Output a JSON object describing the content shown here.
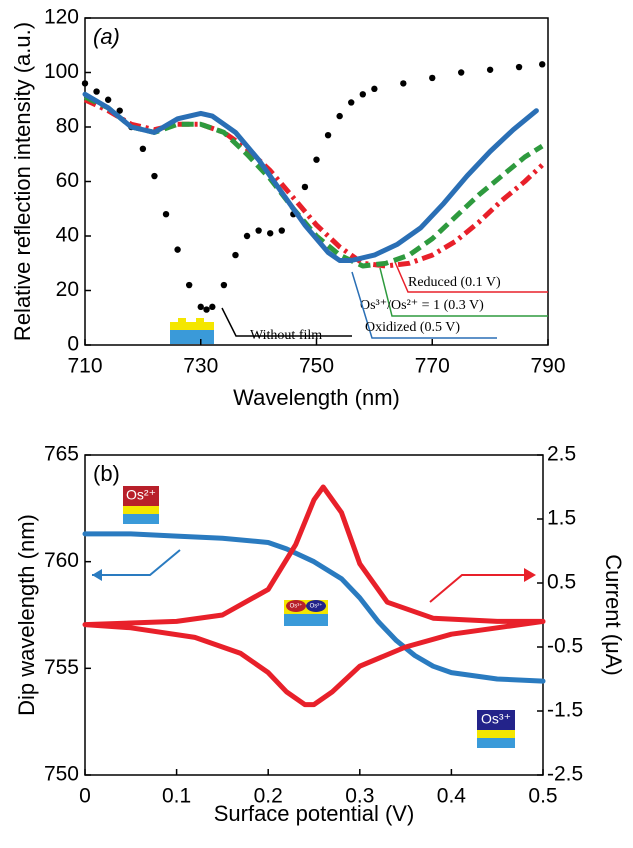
{
  "chart_data": [
    {
      "type": "line",
      "panel_label": "(a)",
      "xlabel": "Wavelength (nm)",
      "ylabel": "Relative reflection intensity (a.u.)",
      "xlim": [
        710,
        790
      ],
      "ylim": [
        0,
        120
      ],
      "xticks": [
        710,
        730,
        750,
        770,
        790
      ],
      "yticks": [
        0,
        20,
        40,
        60,
        80,
        100,
        120
      ],
      "series": [
        {
          "name": "Without film",
          "color": "#000000",
          "linestyle": "dots",
          "x": [
            710,
            712,
            714,
            716,
            718,
            720,
            722,
            724,
            726,
            728,
            730,
            731,
            732,
            734,
            736,
            738,
            740,
            742,
            744,
            746,
            748,
            750,
            752,
            754,
            756,
            758,
            760,
            765,
            770,
            775,
            780,
            785,
            789
          ],
          "values": [
            96,
            93,
            90,
            86,
            80,
            72,
            62,
            48,
            35,
            22,
            14,
            13,
            14,
            22,
            33,
            40,
            42,
            41,
            42,
            48,
            58,
            68,
            77,
            84,
            89,
            92,
            94,
            96,
            98,
            100,
            101,
            102,
            103
          ]
        },
        {
          "name": "Reduced (0.1 V)",
          "color": "#e8202a",
          "linestyle": "dashdot",
          "x": [
            710,
            714,
            718,
            722,
            726,
            730,
            734,
            738,
            742,
            746,
            750,
            754,
            758,
            762,
            766,
            770,
            774,
            778,
            782,
            786,
            789
          ],
          "values": [
            90,
            86,
            81,
            79,
            81,
            81,
            78,
            72,
            64,
            54,
            44,
            36,
            30,
            29,
            30,
            33,
            38,
            45,
            53,
            60,
            66
          ]
        },
        {
          "name": "Os³⁺/Os²⁺ = 1 (0.3 V)",
          "color": "#2e9a3e",
          "linestyle": "dashed",
          "x": [
            710,
            714,
            718,
            722,
            726,
            730,
            734,
            738,
            742,
            746,
            750,
            754,
            758,
            762,
            766,
            770,
            774,
            778,
            782,
            786,
            789
          ],
          "values": [
            91,
            87,
            80,
            78,
            81,
            81,
            78,
            70,
            61,
            50,
            40,
            33,
            29,
            30,
            33,
            39,
            47,
            55,
            62,
            69,
            73
          ]
        },
        {
          "name": "Oxidized (0.5 V)",
          "color": "#2a6fb5",
          "linestyle": "solid",
          "x": [
            710,
            714,
            718,
            722,
            726,
            730,
            732,
            736,
            740,
            744,
            748,
            752,
            754,
            756,
            760,
            764,
            768,
            772,
            776,
            780,
            784,
            788
          ],
          "values": [
            92,
            87,
            80,
            78,
            83,
            85,
            84,
            78,
            68,
            56,
            44,
            34,
            31,
            31,
            33,
            37,
            43,
            52,
            62,
            71,
            79,
            86
          ]
        }
      ]
    },
    {
      "type": "line",
      "panel_label": "(b)",
      "xlabel": "Surface potential (V)",
      "ylabel": "Dip wavelength (nm)",
      "y2label": "Current (μA)",
      "xlim": [
        0,
        0.5
      ],
      "ylim": [
        750,
        765
      ],
      "y2lim": [
        -2.5,
        2.5
      ],
      "xticks": [
        0,
        0.1,
        0.2,
        0.3,
        0.4,
        0.5
      ],
      "yticks": [
        750,
        755,
        760,
        765
      ],
      "y2ticks": [
        -2.5,
        -1.5,
        -0.5,
        0.5,
        1.5,
        2.5
      ],
      "annotations": [
        "Os²⁺",
        "Os³⁺",
        "Os³⁺",
        "Os²⁺"
      ],
      "series": [
        {
          "color": "#2a7bc0",
          "linestyle": "solid",
          "x": [
            0,
            0.05,
            0.1,
            0.15,
            0.2,
            0.22,
            0.25,
            0.28,
            0.3,
            0.32,
            0.34,
            0.36,
            0.38,
            0.4,
            0.45,
            0.5
          ],
          "values": [
            761.3,
            761.3,
            761.2,
            761.1,
            760.9,
            760.6,
            760,
            759.2,
            758.3,
            757.2,
            756.3,
            755.6,
            755.1,
            754.8,
            754.5,
            754.4
          ]
        },
        {
          "color": "#e8202a",
          "linestyle": "solid",
          "axis": "y2",
          "x": [
            0,
            0.1,
            0.15,
            0.2,
            0.23,
            0.25,
            0.26,
            0.28,
            0.3,
            0.33,
            0.38,
            0.45,
            0.5,
            0.45,
            0.4,
            0.35,
            0.3,
            0.27,
            0.25,
            0.24,
            0.22,
            0.2,
            0.17,
            0.12,
            0.05,
            0
          ],
          "values": [
            -0.15,
            -0.1,
            0.0,
            0.4,
            1.1,
            1.8,
            2.0,
            1.6,
            0.8,
            0.2,
            -0.05,
            -0.1,
            -0.1,
            -0.2,
            -0.3,
            -0.5,
            -0.8,
            -1.2,
            -1.4,
            -1.4,
            -1.2,
            -0.9,
            -0.6,
            -0.35,
            -0.2,
            -0.15
          ]
        }
      ]
    }
  ]
}
